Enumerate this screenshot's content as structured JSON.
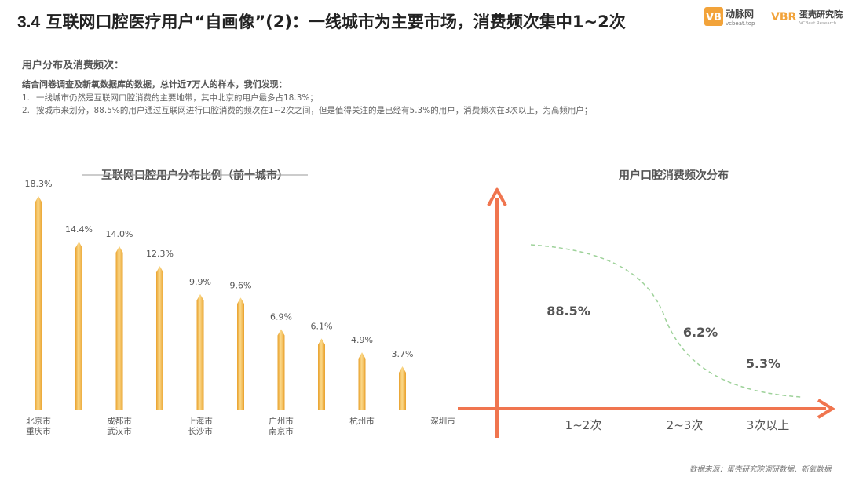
{
  "header": {
    "title_number": "3.4",
    "title_text": "互联网口腔医疗用户“自画像”(2)：一线城市为主要市场，消费频次集中1~2次",
    "logo_vb_mark": "VB",
    "logo_vb_name": "动脉网",
    "logo_vb_url": "vcbeat.top",
    "logo_vbr_mark": "VBR",
    "logo_vbr_name": "蛋壳研究院",
    "logo_vbr_sub": "VCBeat Research"
  },
  "section": {
    "heading": "用户分布及消费频次：",
    "intro": "结合问卷调查及新氧数据库的数据，总计近7万人的样本，我们发现：",
    "findings": [
      {
        "index": "1.",
        "text": "一线城市仍然是互联网口腔消费的主要地带，其中北京的用户最多占18.3%；"
      },
      {
        "index": "2.",
        "text": "按城市来划分，88.5%的用户通过互联网进行口腔消费的频次在1~2次之间，但是值得关注的是已经有5.3%的用户，消费频次在3次以上，为高频用户；"
      }
    ]
  },
  "colors": {
    "bar": "#F4B942",
    "bar_highlight": "#FBD98A",
    "axis_arrow": "#F0754F",
    "curve": "#9ED29A"
  },
  "chart_data": [
    {
      "type": "bar",
      "title": "互联网口腔用户分布比例（前十城市）",
      "categories": [
        "北京市",
        "重庆市",
        "成都市",
        "武汉市",
        "上海市",
        "长沙市",
        "广州市",
        "南京市",
        "杭州市",
        "深圳市"
      ],
      "values": [
        18.3,
        14.4,
        14.0,
        12.3,
        9.9,
        9.6,
        6.9,
        6.1,
        4.9,
        3.7
      ],
      "value_labels": [
        "18.3%",
        "14.4%",
        "14.0%",
        "12.3%",
        "9.9%",
        "9.6%",
        "6.9%",
        "6.1%",
        "4.9%",
        "3.7%"
      ],
      "x_label_rows": [
        {
          "line1": "北京市",
          "line2": "重庆市"
        },
        {
          "line1": "成都市",
          "line2": "武汉市"
        },
        {
          "line1": "上海市",
          "line2": "长沙市"
        },
        {
          "line1": "广州市",
          "line2": "南京市"
        },
        {
          "line1": "杭州市",
          "line2": ""
        },
        {
          "line1": "深圳市",
          "line2": ""
        }
      ],
      "unit": "%",
      "ylim": [
        0,
        20
      ],
      "grid": false
    },
    {
      "type": "area",
      "title": "用户口腔消费频次分布",
      "categories": [
        "1~2次",
        "2~3次",
        "3次以上"
      ],
      "values": [
        88.5,
        6.2,
        5.3
      ],
      "value_labels": [
        "88.5%",
        "6.2%",
        "5.3%"
      ],
      "unit": "%",
      "grid": false
    }
  ],
  "source": "数据来源：蛋壳研究院调研数据、新氧数据"
}
